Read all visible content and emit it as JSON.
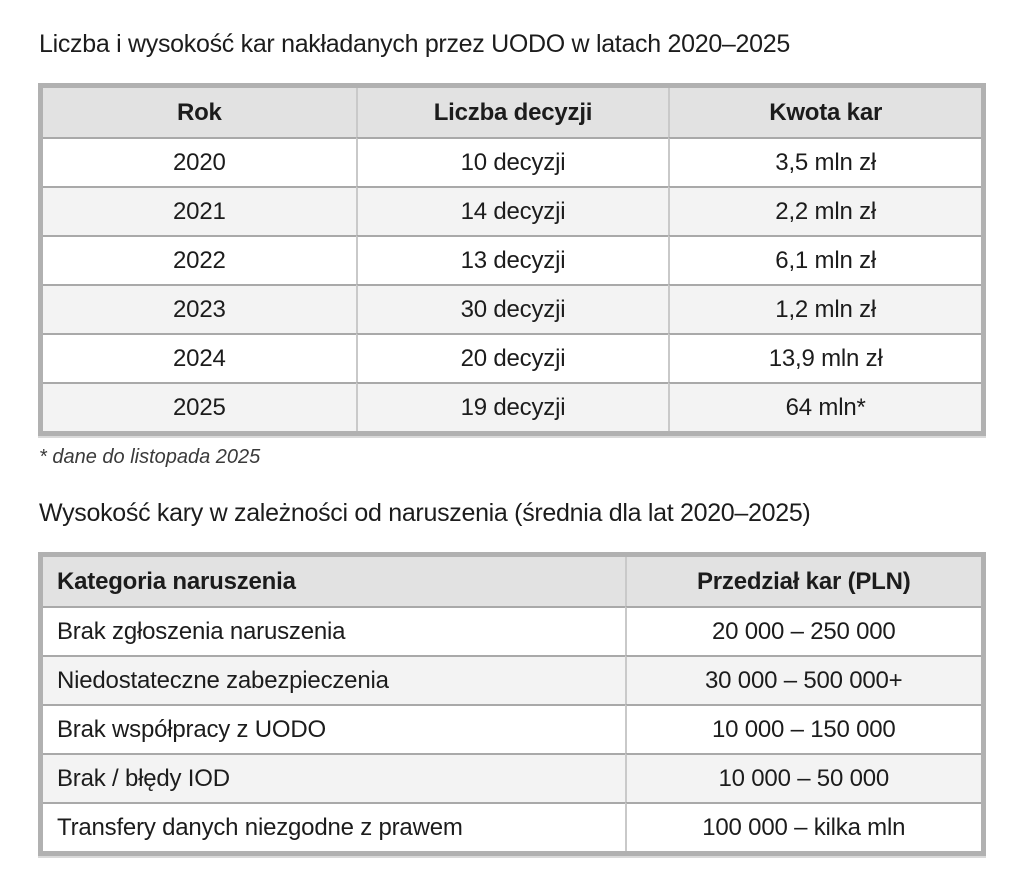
{
  "colors": {
    "table_border": "#b1b1b1",
    "header_background": "#e2e2e2",
    "zebra_row_background": "#f3f3f3",
    "text": "#1c1c1c",
    "page_background": "#ffffff"
  },
  "fines_by_year": {
    "title": "Liczba i wysokość kar nakładanych przez UODO w latach 2020–2025",
    "columns": [
      "Rok",
      "Liczba decyzji",
      "Kwota kar"
    ],
    "rows": [
      [
        "2020",
        "10 decyzji",
        "3,5 mln zł"
      ],
      [
        "2021",
        "14 decyzji",
        "2,2 mln zł"
      ],
      [
        "2022",
        "13 decyzji",
        "6,1 mln zł"
      ],
      [
        "2023",
        "30 decyzji",
        "1,2 mln zł"
      ],
      [
        "2024",
        "20 decyzji",
        "13,9 mln zł"
      ],
      [
        "2025",
        "19 decyzji",
        "64 mln*"
      ]
    ],
    "footnote": "* dane do listopada 2025"
  },
  "fines_by_category": {
    "title": "Wysokość kary w zależności od naruszenia (średnia dla lat 2020–2025)",
    "columns": [
      "Kategoria naruszenia",
      "Przedział kar (PLN)"
    ],
    "rows": [
      [
        "Brak zgłoszenia naruszenia",
        "20 000 – 250 000"
      ],
      [
        "Niedostateczne zabezpieczenia",
        "30 000 – 500 000+"
      ],
      [
        "Brak współpracy z UODO",
        "10 000 – 150 000"
      ],
      [
        "Brak / błędy IOD",
        "10 000 – 50 000"
      ],
      [
        "Transfery danych niezgodne z prawem",
        "100 000 – kilka mln"
      ]
    ]
  }
}
